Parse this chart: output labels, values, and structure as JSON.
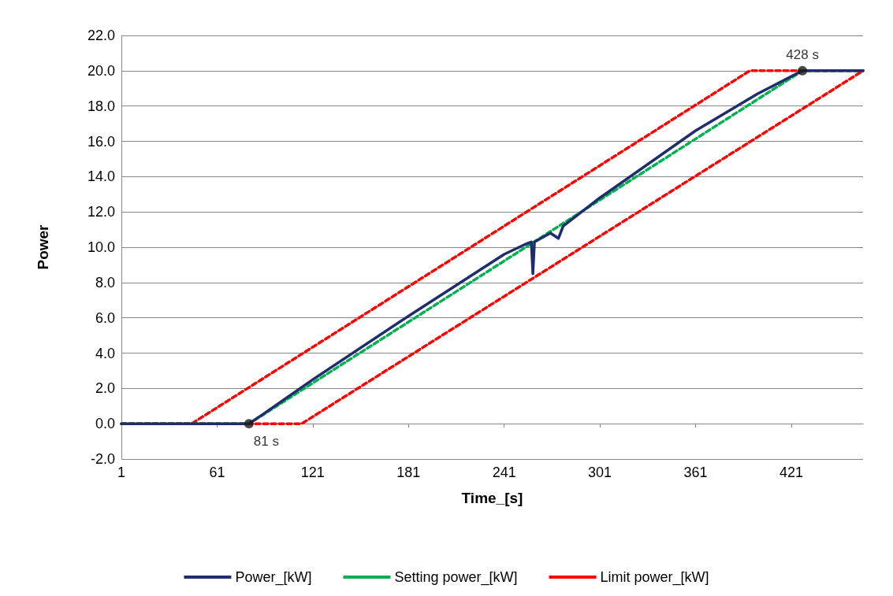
{
  "chart_data": {
    "type": "line",
    "xlabel": "Time_[s]",
    "ylabel": "Power",
    "xlim": [
      1,
      466
    ],
    "xticks": [
      1,
      61,
      121,
      181,
      241,
      301,
      361,
      421
    ],
    "ylim": [
      -2,
      22
    ],
    "yticks": [
      {
        "value": -2,
        "label": "-2.0"
      },
      {
        "value": 0,
        "label": "0.0"
      },
      {
        "value": 2,
        "label": "2.0"
      },
      {
        "value": 4,
        "label": "4.0"
      },
      {
        "value": 6,
        "label": "6.0"
      },
      {
        "value": 8,
        "label": "8.0"
      },
      {
        "value": 10,
        "label": "10.0"
      },
      {
        "value": 12,
        "label": "12.0"
      },
      {
        "value": 14,
        "label": "14.0"
      },
      {
        "value": 16,
        "label": "16.0"
      },
      {
        "value": 18,
        "label": "18.0"
      },
      {
        "value": 20,
        "label": "20.0"
      },
      {
        "value": 22,
        "label": "22.0"
      }
    ],
    "grid": "y",
    "legend": "bottom",
    "marker": "none",
    "annotations": [
      {
        "text": "81 s",
        "x": 81,
        "y": 0
      },
      {
        "text": "428 s",
        "x": 428,
        "y": 20
      }
    ],
    "series": [
      {
        "name": "Power_[kW]",
        "color": "#1f2d6b",
        "line_style": "solid",
        "x": [
          1,
          81,
          90,
          121,
          181,
          241,
          255,
          258,
          259,
          260,
          270,
          275,
          278,
          301,
          361,
          400,
          428,
          466
        ],
        "values": [
          0,
          0,
          0.55,
          2.5,
          6.1,
          9.6,
          10.2,
          10.3,
          8.5,
          10.3,
          10.8,
          10.5,
          11.2,
          12.8,
          16.6,
          18.7,
          20,
          20
        ]
      },
      {
        "name": "Setting power_[kW]",
        "color": "#00b050",
        "line_style": "dashed",
        "x": [
          1,
          81,
          428,
          466
        ],
        "values": [
          0,
          0,
          20,
          20
        ]
      },
      {
        "name": "Limit power_[kW]",
        "color": "#ff0000",
        "line_style": "dashed",
        "x": [
          1,
          45,
          395,
          466
        ],
        "values": [
          0,
          0,
          20,
          20
        ]
      },
      {
        "color": "#ff0000",
        "line_style": "dashed",
        "x": [
          1,
          114,
          466
        ],
        "values": [
          0,
          0,
          20
        ]
      },
      {
        "type": "scatter",
        "marker": "circle",
        "color": "#1a1a1a",
        "x": [
          81,
          428
        ],
        "values": [
          0,
          20
        ]
      }
    ]
  }
}
